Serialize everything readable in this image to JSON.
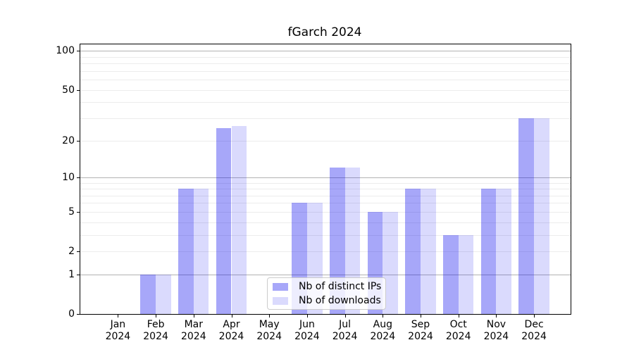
{
  "chart_data": {
    "type": "bar",
    "title": "fGarch 2024",
    "xlabel": "",
    "ylabel": "",
    "year_label": "2024",
    "categories": [
      "Jan",
      "Feb",
      "Mar",
      "Apr",
      "May",
      "Jun",
      "Jul",
      "Aug",
      "Sep",
      "Oct",
      "Nov",
      "Dec"
    ],
    "series": [
      {
        "name": "Nb of distinct IPs",
        "color": "rgba(0,0,238,0.345)",
        "approx_hex": "#a7a7f9",
        "values": [
          0,
          1,
          8,
          25,
          0,
          6,
          12,
          5,
          8,
          3,
          8,
          30
        ]
      },
      {
        "name": "Nb of downloads",
        "color": "rgba(0,0,238,0.145)",
        "approx_hex": "#dadafc",
        "values": [
          0,
          1,
          8,
          26,
          0,
          6,
          12,
          5,
          8,
          3,
          8,
          30
        ]
      }
    ],
    "yscale": "log1p",
    "ylim": [
      0,
      110
    ],
    "yticks": [
      0,
      1,
      2,
      5,
      10,
      20,
      50,
      100
    ],
    "grid": {
      "minor_values": [
        2,
        3,
        4,
        5,
        6,
        7,
        8,
        9,
        20,
        30,
        40,
        50,
        60,
        70,
        80,
        90
      ],
      "major_values": [
        1,
        10,
        100
      ],
      "minor_color": "#ececec",
      "major_color": "#b3b3b3"
    },
    "legend": {
      "position": "lower center"
    },
    "colors": {
      "axis": "#000000",
      "background": "#ffffff",
      "legend_border": "#cccccc"
    }
  }
}
